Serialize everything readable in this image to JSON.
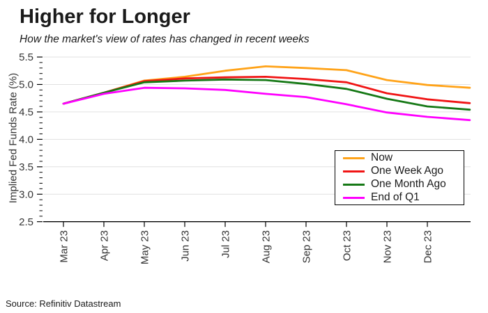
{
  "title": "Higher for Longer",
  "subtitle": "How the market's view of rates has changed in recent weeks",
  "source": "Source: Refinitiv Datastream",
  "chart_data": {
    "type": "line",
    "title": "Higher for Longer",
    "subtitle": "How the market's view of rates has changed in recent weeks",
    "xlabel": "",
    "ylabel": "Implied Fed Funds Rate (%)",
    "ylim": [
      2.5,
      5.5
    ],
    "y_major_ticks": [
      2.5,
      3.0,
      3.5,
      4.0,
      4.5,
      5.0,
      5.5
    ],
    "y_minor_step": 0.1,
    "grid": "horizontal-major-light-gray",
    "legend_position": "lower-right-boxed",
    "x_note": "x is months since Mar 2023; series extend about one month past the Dec 23 tick to the plot edge",
    "x": [
      0,
      1,
      2,
      3,
      4,
      5,
      6,
      7,
      8,
      9,
      10.05
    ],
    "x_tick_labels": [
      "Mar 23",
      "Apr 23",
      "May 23",
      "Jun 23",
      "Jul 23",
      "Aug 23",
      "Sep 23",
      "Oct 23",
      "Nov 23",
      "Dec 23"
    ],
    "series": [
      {
        "name": "Now",
        "color": "#FFA319",
        "values": [
          4.65,
          4.85,
          5.07,
          5.14,
          5.25,
          5.33,
          5.3,
          5.26,
          5.08,
          4.99,
          4.94
        ]
      },
      {
        "name": "One Week Ago",
        "color": "#F01414",
        "values": [
          4.65,
          4.85,
          5.06,
          5.11,
          5.13,
          5.14,
          5.1,
          5.04,
          4.84,
          4.73,
          4.66
        ]
      },
      {
        "name": "One Month Ago",
        "color": "#157815",
        "values": [
          4.65,
          4.85,
          5.04,
          5.07,
          5.09,
          5.08,
          5.01,
          4.92,
          4.74,
          4.6,
          4.54
        ]
      },
      {
        "name": "End of Q1",
        "color": "#FF00FF",
        "values": [
          4.65,
          4.83,
          4.94,
          4.93,
          4.9,
          4.83,
          4.77,
          4.64,
          4.49,
          4.41,
          4.35
        ]
      }
    ],
    "colors": {
      "gridline": "#E0E0E0",
      "axis": "#000000",
      "text": "#333333"
    }
  }
}
